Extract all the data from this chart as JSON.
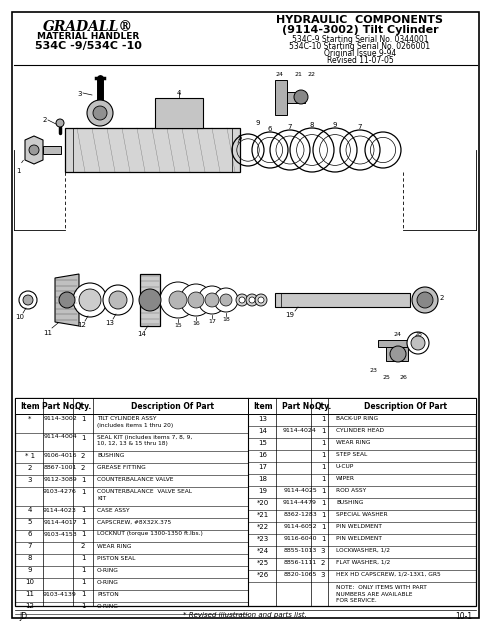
{
  "title_left_line1": "GRADALL®",
  "title_left_line2": "MATERIAL HANDLER",
  "title_left_line3": "534C -9/534C -10",
  "title_right_line1": "HYDRAULIC  COMPONENTS",
  "title_right_line2": "(9114-3002) Tilt Cylinder",
  "title_right_line3": "534C-9 Starting Serial No. 0344001",
  "title_right_line4": "534C-10 Starting Serial No. 0266001",
  "title_right_line5": "Original Issue 9-94",
  "title_right_line6": "Revised 11-07-05",
  "footer_left": "JD",
  "footer_center": "* Revised illustration and parts list.",
  "footer_right": "10-1",
  "table_left": [
    [
      "*",
      "9114-3002",
      "1",
      "TILT CYLINDER ASSY\n(includes items 1 thru 20)"
    ],
    [
      "",
      "9114-4004",
      "1",
      "SEAL KIT (includes items 7, 8, 9,\n10, 12, 13 & 15 thru 18)"
    ],
    [
      "* 1",
      "9106-4016",
      "2",
      "BUSHING"
    ],
    [
      "2",
      "8867-1001",
      "2",
      "GREASE FITTING"
    ],
    [
      "3",
      "9112-3089",
      "1",
      "COUNTERBALANCE VALVE"
    ],
    [
      "",
      "9103-4276",
      "1",
      "COUNTERBALANCE  VALVE SEAL\nKIT"
    ],
    [
      "4",
      "9114-4023",
      "1",
      "CASE ASSY"
    ],
    [
      "5",
      "9114-4017",
      "1",
      "CAPSCREW, #8X32X.375"
    ],
    [
      "6",
      "9103-4153",
      "1",
      "LOCKNUT (torque 1300-1350 ft.lbs.)"
    ],
    [
      "7",
      "",
      "2",
      "WEAR RING"
    ],
    [
      "8",
      "",
      "1",
      "PISTON SEAL"
    ],
    [
      "9",
      "",
      "1",
      "O-RING"
    ],
    [
      "10",
      "",
      "1",
      "O-RING"
    ],
    [
      "11",
      "9103-4139",
      "1",
      "PISTON"
    ],
    [
      "12",
      "",
      "1",
      "O-RING"
    ]
  ],
  "table_right": [
    [
      "13",
      "",
      "1",
      "BACK-UP RING"
    ],
    [
      "14",
      "9114-4024",
      "1",
      "CYLINDER HEAD"
    ],
    [
      "15",
      "",
      "1",
      "WEAR RING"
    ],
    [
      "16",
      "",
      "1",
      "STEP SEAL"
    ],
    [
      "17",
      "",
      "1",
      "U-CUP"
    ],
    [
      "18",
      "",
      "1",
      "WIPER"
    ],
    [
      "19",
      "9114-4025",
      "1",
      "ROD ASSY"
    ],
    [
      "*20",
      "9114-4479",
      "1",
      "BUSHING"
    ],
    [
      "*21",
      "8362-1283",
      "1",
      "SPECIAL WASHER"
    ],
    [
      "*22",
      "9114-6052",
      "1",
      "PIN WELDMENT"
    ],
    [
      "*23",
      "9116-6040",
      "1",
      "PIN WELDMENT"
    ],
    [
      "*24",
      "8855-1013",
      "3",
      "LOCKWASHER, 1/2"
    ],
    [
      "*25",
      "8856-1111",
      "2",
      "FLAT WASHER, 1/2"
    ],
    [
      "*26",
      "8820-1065",
      "3",
      "HEX HD CAPSCREW, 1/2-13X1, GR5"
    ]
  ],
  "note": "NOTE:  ONLY ITEMS WITH PART\nNUMBERS ARE AVAILABLE\nFOR SERVICE."
}
